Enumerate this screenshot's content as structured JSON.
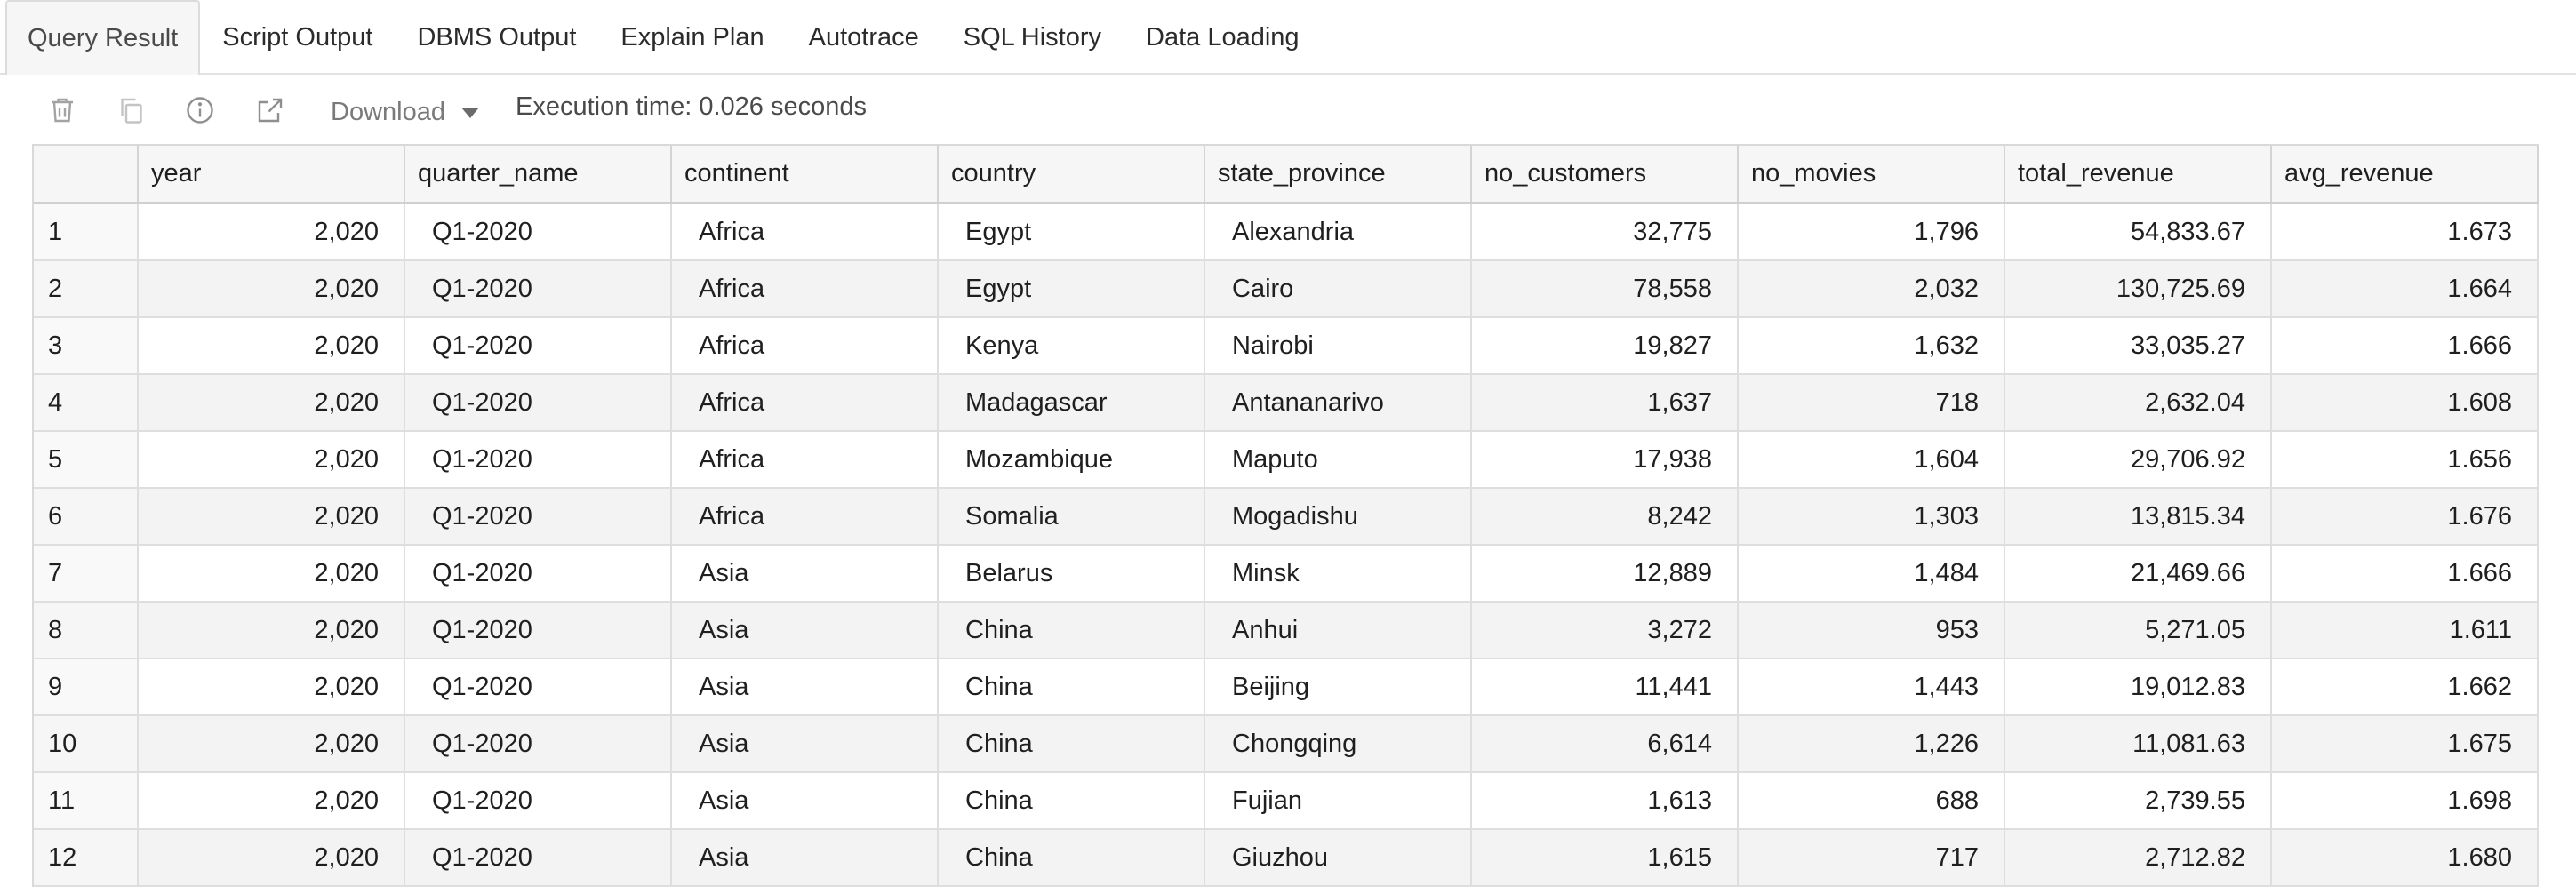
{
  "tabs": [
    {
      "label": "Query Result",
      "active": true
    },
    {
      "label": "Script Output",
      "active": false
    },
    {
      "label": "DBMS Output",
      "active": false
    },
    {
      "label": "Explain Plan",
      "active": false
    },
    {
      "label": "Autotrace",
      "active": false
    },
    {
      "label": "SQL History",
      "active": false
    },
    {
      "label": "Data Loading",
      "active": false
    }
  ],
  "toolbar": {
    "icons": [
      "trash-icon",
      "copy-icon",
      "info-icon",
      "open-external-icon"
    ],
    "download_label": "Download",
    "execution_time": "Execution time: 0.026 seconds"
  },
  "colors": {
    "header_bg": "#f6f6f6",
    "alt_row_bg": "#f3f3f3",
    "grid_line": "#dedede",
    "icon_gray": "#9a9a9a"
  },
  "table": {
    "columns": [
      "year",
      "quarter_name",
      "continent",
      "country",
      "state_province",
      "no_customers",
      "no_movies",
      "total_revenue",
      "avg_revenue"
    ],
    "rows": [
      {
        "n": "1",
        "cells": [
          "2,020",
          "Q1-2020",
          "Africa",
          "Egypt",
          "Alexandria",
          "32,775",
          "1,796",
          "54,833.67",
          "1.673"
        ]
      },
      {
        "n": "2",
        "cells": [
          "2,020",
          "Q1-2020",
          "Africa",
          "Egypt",
          "Cairo",
          "78,558",
          "2,032",
          "130,725.69",
          "1.664"
        ]
      },
      {
        "n": "3",
        "cells": [
          "2,020",
          "Q1-2020",
          "Africa",
          "Kenya",
          "Nairobi",
          "19,827",
          "1,632",
          "33,035.27",
          "1.666"
        ]
      },
      {
        "n": "4",
        "cells": [
          "2,020",
          "Q1-2020",
          "Africa",
          "Madagascar",
          "Antananarivo",
          "1,637",
          "718",
          "2,632.04",
          "1.608"
        ]
      },
      {
        "n": "5",
        "cells": [
          "2,020",
          "Q1-2020",
          "Africa",
          "Mozambique",
          "Maputo",
          "17,938",
          "1,604",
          "29,706.92",
          "1.656"
        ]
      },
      {
        "n": "6",
        "cells": [
          "2,020",
          "Q1-2020",
          "Africa",
          "Somalia",
          "Mogadishu",
          "8,242",
          "1,303",
          "13,815.34",
          "1.676"
        ]
      },
      {
        "n": "7",
        "cells": [
          "2,020",
          "Q1-2020",
          "Asia",
          "Belarus",
          "Minsk",
          "12,889",
          "1,484",
          "21,469.66",
          "1.666"
        ]
      },
      {
        "n": "8",
        "cells": [
          "2,020",
          "Q1-2020",
          "Asia",
          "China",
          "Anhui",
          "3,272",
          "953",
          "5,271.05",
          "1.611"
        ]
      },
      {
        "n": "9",
        "cells": [
          "2,020",
          "Q1-2020",
          "Asia",
          "China",
          "Beijing",
          "11,441",
          "1,443",
          "19,012.83",
          "1.662"
        ]
      },
      {
        "n": "10",
        "cells": [
          "2,020",
          "Q1-2020",
          "Asia",
          "China",
          "Chongqing",
          "6,614",
          "1,226",
          "11,081.63",
          "1.675"
        ]
      },
      {
        "n": "11",
        "cells": [
          "2,020",
          "Q1-2020",
          "Asia",
          "China",
          "Fujian",
          "1,613",
          "688",
          "2,739.55",
          "1.698"
        ]
      },
      {
        "n": "12",
        "cells": [
          "2,020",
          "Q1-2020",
          "Asia",
          "China",
          "Giuzhou",
          "1,615",
          "717",
          "2,712.82",
          "1.680"
        ]
      }
    ]
  }
}
